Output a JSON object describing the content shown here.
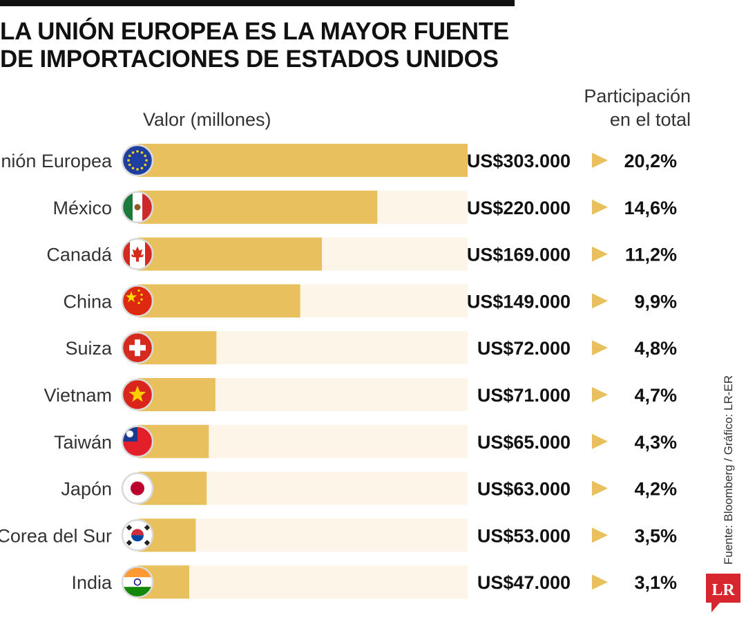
{
  "title_line1": "LA UNIÓN EUROPEA ES LA MAYOR FUENTE",
  "title_line2": "DE IMPORTACIONES DE ESTADOS UNIDOS",
  "value_header": "Valor (millones)",
  "share_header_line1": "Participación",
  "share_header_line2": "en el total",
  "source": "Fuente: Bloomberg / Gráfico: LR-ER",
  "logo_text": "LR",
  "colors": {
    "bar": "#e8c15e",
    "track": "#fcf5e8",
    "arrow": "#e8c15e",
    "logo": "#d7262e"
  },
  "chart_data": {
    "type": "bar",
    "orientation": "horizontal",
    "title": "LA UNIÓN EUROPEA ES LA MAYOR FUENTE DE IMPORTACIONES DE ESTADOS UNIDOS",
    "xlabel": "Valor (millones)",
    "categories": [
      "Unión Europea",
      "México",
      "Canadá",
      "China",
      "Suiza",
      "Vietnam",
      "Taiwán",
      "Japón",
      "Corea del Sur",
      "India"
    ],
    "values": [
      303000,
      220000,
      169000,
      149000,
      72000,
      71000,
      65000,
      63000,
      53000,
      47000
    ],
    "value_labels": [
      "US$303.000",
      "US$220.000",
      "US$169.000",
      "US$149.000",
      "US$72.000",
      "US$71.000",
      "US$65.000",
      "US$63.000",
      "US$53.000",
      "US$47.000"
    ],
    "shares": [
      "20,2%",
      "14,6%",
      "11,2%",
      "9,9%",
      "4,8%",
      "4,7%",
      "4,3%",
      "4,2%",
      "3,5%",
      "3,1%"
    ],
    "share_values": [
      20.2,
      14.6,
      11.2,
      9.9,
      4.8,
      4.7,
      4.3,
      4.2,
      3.5,
      3.1
    ],
    "flag_icons": [
      "eu-flag-icon",
      "mexico-flag-icon",
      "canada-flag-icon",
      "china-flag-icon",
      "switzerland-flag-icon",
      "vietnam-flag-icon",
      "taiwan-flag-icon",
      "japan-flag-icon",
      "south-korea-flag-icon",
      "india-flag-icon"
    ],
    "xlim": [
      0,
      303000
    ],
    "grid": false,
    "legend": "none"
  }
}
